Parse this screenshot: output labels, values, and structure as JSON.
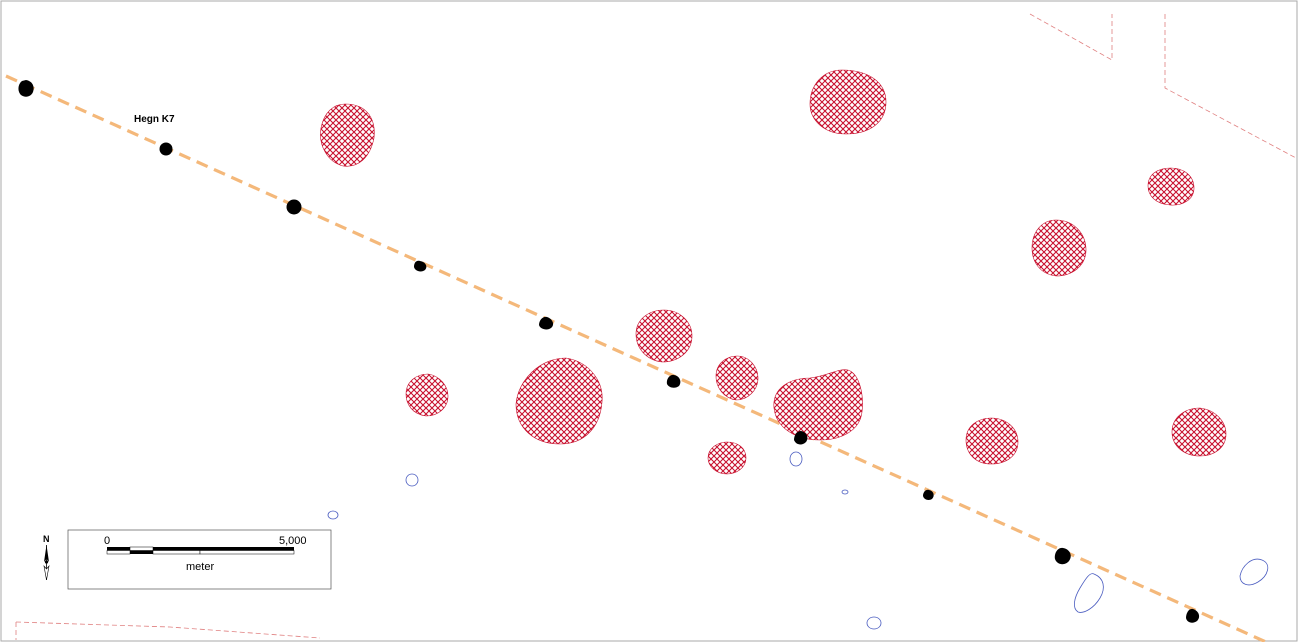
{
  "map": {
    "feature_label": "Hegn K7",
    "north_letter": "N",
    "scale_start": "0",
    "scale_end": "5,000",
    "scale_unit": "meter"
  },
  "colors": {
    "hatch": "#c8102e",
    "fence_line": "#f4b87a",
    "post": "#000000",
    "boundary_red": "#e08080",
    "outline_blue": "#4a5cc0",
    "frame": "#aaaaaa"
  },
  "icons": {
    "north_arrow": "north-arrow-icon"
  }
}
